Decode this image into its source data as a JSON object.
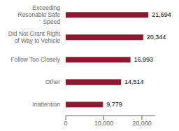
{
  "chart_data": {
    "type": "bar",
    "orientation": "horizontal",
    "categories": [
      "Exceeding\nResonable Safe\nSpeed",
      "Did Not Grant Right\nof Way to Vehicle",
      "Follow Too Closely",
      "Other",
      "Inattention"
    ],
    "values": [
      21694,
      20344,
      16993,
      14514,
      9779
    ],
    "value_labels": [
      "21,694",
      "20,344",
      "16,993",
      "14,514",
      "9,779"
    ],
    "data_labels": true,
    "color": "#8B1A2E",
    "xlim": [
      0,
      23500
    ],
    "xticks": [
      0,
      {
        "value": 10000,
        "label": "10,000"
      },
      {
        "value": 20000,
        "label": "20,000"
      }
    ]
  }
}
